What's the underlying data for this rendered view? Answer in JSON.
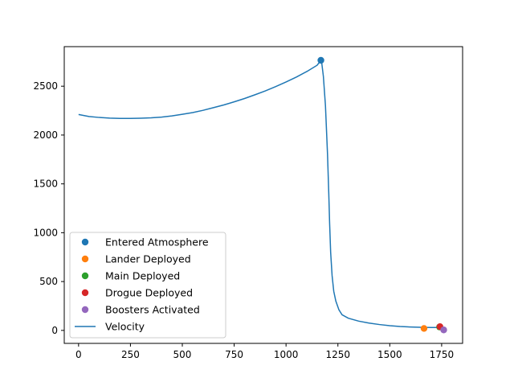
{
  "chart_data": {
    "type": "line",
    "title": "",
    "xlabel": "",
    "ylabel": "",
    "xlim": [
      -69,
      1851
    ],
    "ylim": [
      -133,
      2905
    ],
    "x_ticks": [
      0,
      250,
      500,
      750,
      1000,
      1250,
      1500,
      1750
    ],
    "y_ticks": [
      0,
      500,
      1000,
      1500,
      2000,
      2500
    ],
    "grid": false,
    "legend_position": "lower-left",
    "line_series": {
      "name": "Velocity",
      "color": "#1f77b4",
      "points": [
        [
          0,
          2210
        ],
        [
          50,
          2190
        ],
        [
          100,
          2180
        ],
        [
          150,
          2173
        ],
        [
          200,
          2170
        ],
        [
          250,
          2170
        ],
        [
          300,
          2172
        ],
        [
          350,
          2176
        ],
        [
          400,
          2184
        ],
        [
          450,
          2196
        ],
        [
          500,
          2212
        ],
        [
          550,
          2230
        ],
        [
          600,
          2253
        ],
        [
          650,
          2280
        ],
        [
          700,
          2308
        ],
        [
          750,
          2340
        ],
        [
          800,
          2374
        ],
        [
          850,
          2412
        ],
        [
          900,
          2452
        ],
        [
          950,
          2496
        ],
        [
          1000,
          2543
        ],
        [
          1050,
          2594
        ],
        [
          1100,
          2650
        ],
        [
          1150,
          2715
        ],
        [
          1168,
          2765
        ],
        [
          1172,
          2740
        ],
        [
          1180,
          2600
        ],
        [
          1190,
          2300
        ],
        [
          1200,
          1800
        ],
        [
          1206,
          1400
        ],
        [
          1210,
          1100
        ],
        [
          1215,
          800
        ],
        [
          1222,
          560
        ],
        [
          1230,
          400
        ],
        [
          1240,
          300
        ],
        [
          1255,
          210
        ],
        [
          1270,
          160
        ],
        [
          1300,
          125
        ],
        [
          1350,
          95
        ],
        [
          1400,
          75
        ],
        [
          1450,
          60
        ],
        [
          1500,
          48
        ],
        [
          1550,
          40
        ],
        [
          1600,
          35
        ],
        [
          1650,
          32
        ],
        [
          1700,
          30
        ],
        [
          1745,
          30
        ],
        [
          1760,
          15
        ],
        [
          1765,
          5
        ]
      ]
    },
    "event_series": [
      {
        "name": "Entered Atmosphere",
        "color": "#1f77b4",
        "x": 1168,
        "y": 2765
      },
      {
        "name": "Lander Deployed",
        "color": "#ff7f0e",
        "x": 1665,
        "y": 20
      },
      {
        "name": "Main Deployed",
        "color": "#2ca02c",
        "x": 1740,
        "y": 35
      },
      {
        "name": "Drogue Deployed",
        "color": "#d62728",
        "x": 1742,
        "y": 38
      },
      {
        "name": "Boosters Activated",
        "color": "#9467bd",
        "x": 1760,
        "y": 5
      }
    ]
  }
}
